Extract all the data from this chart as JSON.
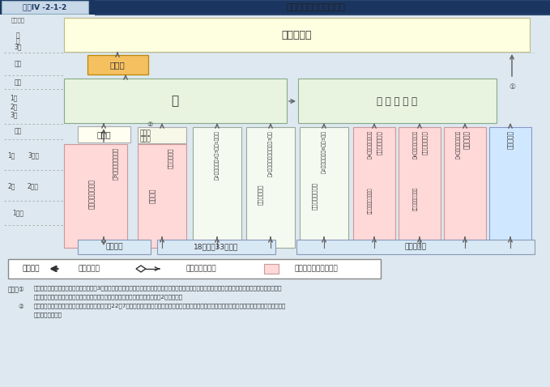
{
  "bg_color": "#dde8f0",
  "title_label_bg": "#1a3560",
  "title_label_text_bg": "#c8d8e8",
  "title_label": "図表IV -2-1-2",
  "title_text": "自衛官の任用制度の概要",
  "kanbu_color": "#fefee0",
  "junso_color": "#f5c060",
  "so_color": "#e8f4e0",
  "kanbu_koho_color": "#e8f4e0",
  "pink_color": "#ffd8d8",
  "blue_color": "#d0e8ff",
  "cream_color": "#fffef0",
  "bottom_box_color": "#d8e8f5",
  "white_color": "#ffffff",
  "gray_ec": "#999999",
  "note1a": "（注）①　所定の教育訓練を修了したものは、通常3尉に昇任するところ、一般大学等の修士課程修了者のうち院卒者試験により入隊した者、並びに、防衛医科大学校",
  "note1b": "医学科学生及び歯科・薬剤科幹部候補生については、国家試験に合格した者は、2尉に昇任。",
  "note2": "②　任期制自衛官の初期教育を充実させるため、平成22年7月から、入隊当初の３ヶ月間を非自衛官化して、定員外の防衛省職員とし、基礎的教育訓練に専従させることとした。"
}
